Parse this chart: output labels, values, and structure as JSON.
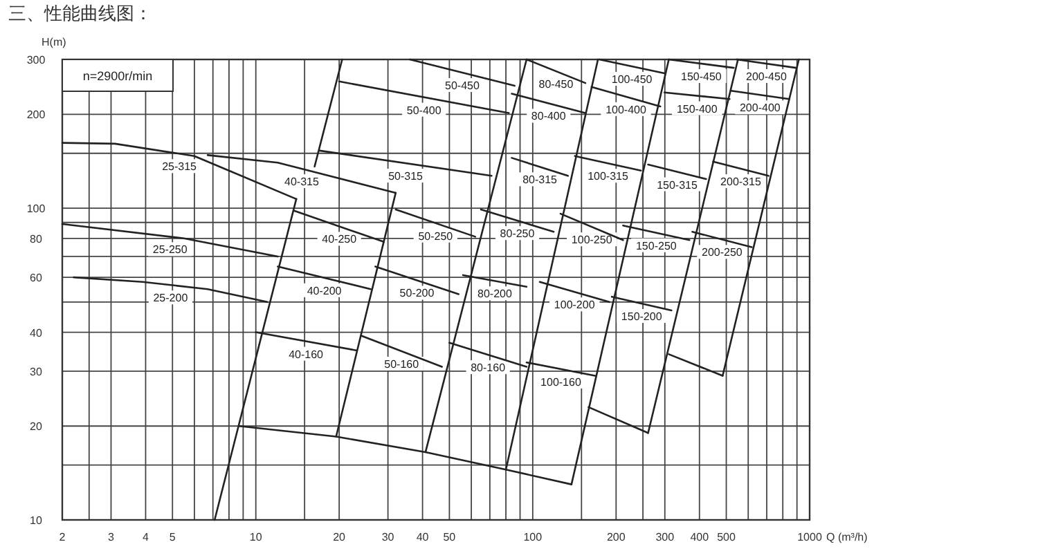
{
  "chart_data": {
    "type": "line",
    "title": "三、性能曲线图：",
    "xlabel": "Q (m³/h)",
    "ylabel": "H(m)",
    "log": "xy",
    "grid": true,
    "xlim": [
      2,
      1000
    ],
    "ylim": [
      10,
      300
    ],
    "xticks": [
      2,
      {
        "value": 2.5,
        "label": null
      },
      3,
      4,
      5,
      {
        "value": 6,
        "label": null
      },
      {
        "value": 7,
        "label": null
      },
      {
        "value": 8,
        "label": null
      },
      {
        "value": 9,
        "label": null
      },
      10,
      {
        "value": 15,
        "label": null
      },
      20,
      30,
      40,
      50,
      {
        "value": 60,
        "label": null
      },
      {
        "value": 70,
        "label": null
      },
      {
        "value": 80,
        "label": null
      },
      {
        "value": 90,
        "label": null
      },
      100,
      {
        "value": 150,
        "label": null
      },
      200,
      {
        "value": 250,
        "label": null
      },
      300,
      400,
      500,
      {
        "value": 600,
        "label": null
      },
      {
        "value": 700,
        "label": null
      },
      {
        "value": 800,
        "label": null
      },
      {
        "value": 900,
        "label": null
      },
      1000
    ],
    "yticks": [
      10,
      {
        "value": 15,
        "label": null
      },
      20,
      30,
      40,
      {
        "value": 50,
        "label": null
      },
      60,
      {
        "value": 70,
        "label": null
      },
      80,
      {
        "value": 90,
        "label": null
      },
      100,
      {
        "value": 150,
        "label": null
      },
      200,
      300
    ],
    "series": [
      {
        "name": "25-315",
        "color": "#222222",
        "x": [
          2,
          3.1,
          6,
          14
        ],
        "values": [
          162,
          161,
          147,
          107
        ]
      },
      {
        "name": "40-315",
        "color": "#222222",
        "x": [
          6.7,
          12,
          32
        ],
        "values": [
          148,
          140,
          112
        ]
      },
      {
        "name": "25-250",
        "color": "#222222",
        "x": [
          2,
          5.5,
          12
        ],
        "values": [
          89,
          80,
          70
        ]
      },
      {
        "name": "25-200",
        "color": "#222222",
        "x": [
          2.2,
          3.9,
          6.7,
          11
        ],
        "values": [
          60,
          58,
          55,
          50
        ]
      },
      {
        "color": "#222222",
        "x": [
          8.7,
          19.5,
          41,
          80,
          138
        ],
        "values": [
          20,
          18.5,
          16.5,
          14.5,
          13
        ]
      },
      {
        "color": "#222222",
        "x": [
          7.1,
          14
        ],
        "values": [
          10,
          107
        ]
      },
      {
        "color": "#222222",
        "x": [
          19.5,
          32
        ],
        "values": [
          18.5,
          112
        ]
      },
      {
        "color": "#222222",
        "x": [
          16.3,
          20.5
        ],
        "values": [
          136,
          300
        ]
      },
      {
        "color": "#222222",
        "x": [
          41,
          95
        ],
        "values": [
          16.5,
          300
        ]
      },
      {
        "color": "#222222",
        "x": [
          80,
          172
        ],
        "values": [
          14.5,
          300
        ]
      },
      {
        "color": "#222222",
        "x": [
          138,
          310
        ],
        "values": [
          13,
          300
        ]
      },
      {
        "color": "#222222",
        "x": [
          261,
          551
        ],
        "values": [
          19,
          300
        ]
      },
      {
        "color": "#222222",
        "x": [
          485,
          914
        ],
        "values": [
          29,
          300
        ]
      },
      {
        "name": "40-160",
        "color": "#222222",
        "x": [
          10,
          23
        ],
        "values": [
          40,
          35
        ]
      },
      {
        "name": "40-200",
        "color": "#222222",
        "x": [
          12,
          26
        ],
        "values": [
          65,
          55
        ]
      },
      {
        "name": "40-250",
        "color": "#222222",
        "x": [
          13.8,
          29
        ],
        "values": [
          98,
          78
        ]
      },
      {
        "name": "50-160",
        "color": "#222222",
        "x": [
          24,
          47
        ],
        "values": [
          39,
          31
        ]
      },
      {
        "name": "50-200",
        "color": "#222222",
        "x": [
          27,
          54
        ],
        "values": [
          65,
          53
        ]
      },
      {
        "name": "50-250",
        "color": "#222222",
        "x": [
          32,
          62
        ],
        "values": [
          99,
          81
        ]
      },
      {
        "name": "50-315",
        "color": "#222222",
        "x": [
          17,
          71
        ],
        "values": [
          153,
          127
        ]
      },
      {
        "name": "50-400",
        "color": "#222222",
        "x": [
          20,
          82
        ],
        "values": [
          255,
          202
        ]
      },
      {
        "name": "50-450",
        "color": "#222222",
        "x": [
          36,
          86
        ],
        "values": [
          300,
          247
        ]
      },
      {
        "name": "80-160",
        "color": "#222222",
        "x": [
          50,
          95
        ],
        "values": [
          37,
          31
        ]
      },
      {
        "name": "80-200",
        "color": "#222222",
        "x": [
          56,
          95
        ],
        "values": [
          61,
          56
        ]
      },
      {
        "name": "80-250",
        "color": "#222222",
        "x": [
          65,
          119
        ],
        "values": [
          99,
          84
        ]
      },
      {
        "name": "80-315",
        "color": "#222222",
        "x": [
          84,
          134
        ],
        "values": [
          145,
          127
        ]
      },
      {
        "name": "80-400",
        "color": "#222222",
        "x": [
          84,
          155
        ],
        "values": [
          233,
          202
        ]
      },
      {
        "name": "80-450",
        "color": "#222222",
        "x": [
          95,
          155
        ],
        "values": [
          300,
          252
        ]
      },
      {
        "name": "100-160",
        "color": "#222222",
        "x": [
          95,
          168
        ],
        "values": [
          32,
          29
        ]
      },
      {
        "name": "100-200",
        "color": "#222222",
        "x": [
          106,
          189
        ],
        "values": [
          58,
          50
        ]
      },
      {
        "name": "100-250",
        "color": "#222222",
        "x": [
          126,
          212
        ],
        "values": [
          96,
          79
        ]
      },
      {
        "name": "100-315",
        "color": "#222222",
        "x": [
          142,
          246
        ],
        "values": [
          147,
          132
        ]
      },
      {
        "name": "100-400",
        "color": "#222222",
        "x": [
          163,
          289
        ],
        "values": [
          245,
          212
        ]
      },
      {
        "name": "100-450",
        "color": "#222222",
        "x": [
          174,
          299
        ],
        "values": [
          300,
          271
        ]
      },
      {
        "color": "#222222",
        "x": [
          159,
          261
        ],
        "values": [
          23,
          19
        ]
      },
      {
        "name": "150-200",
        "color": "#222222",
        "x": [
          193,
          317
        ],
        "values": [
          52,
          47
        ]
      },
      {
        "name": "150-250",
        "color": "#222222",
        "x": [
          212,
          368
        ],
        "values": [
          88,
          79
        ]
      },
      {
        "name": "150-315",
        "color": "#222222",
        "x": [
          261,
          423
        ],
        "values": [
          138,
          124
        ]
      },
      {
        "name": "150-400",
        "color": "#222222",
        "x": [
          299,
          514
        ],
        "values": [
          235,
          224
        ]
      },
      {
        "name": "150-450",
        "color": "#222222",
        "x": [
          310,
          532
        ],
        "values": [
          300,
          282
        ]
      },
      {
        "color": "#222222",
        "x": [
          310,
          485
        ],
        "values": [
          34,
          29
        ]
      },
      {
        "name": "200-250",
        "color": "#222222",
        "x": [
          377,
          618
        ],
        "values": [
          84,
          75
        ]
      },
      {
        "name": "200-315",
        "color": "#222222",
        "x": [
          448,
          710
        ],
        "values": [
          141,
          127
        ]
      },
      {
        "name": "200-400",
        "color": "#222222",
        "x": [
          520,
          843
        ],
        "values": [
          238,
          224
        ]
      },
      {
        "name": "200-450",
        "color": "#222222",
        "x": [
          545,
          893
        ],
        "values": [
          300,
          282
        ]
      }
    ],
    "annotations": [
      "n=2900r/min"
    ]
  }
}
